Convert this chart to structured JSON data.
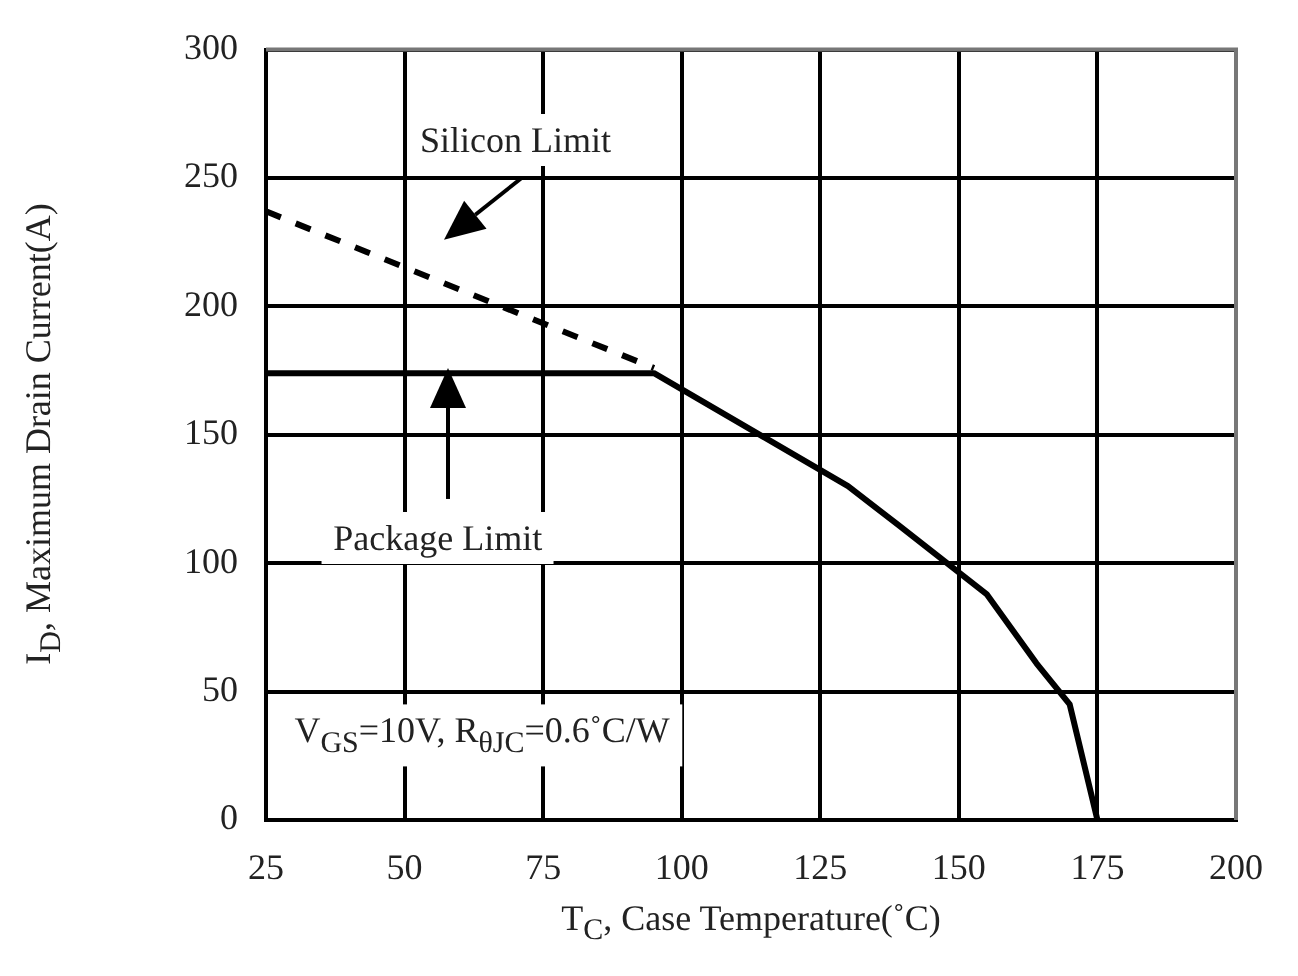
{
  "chart_data": {
    "type": "line",
    "xlabel": "T$_{C}$, Case Temperature(˚C)",
    "ylabel": "I$_{D}$, Maximum Drain Current(A)",
    "xlim": [
      25,
      200
    ],
    "xticks": [
      25,
      50,
      75,
      100,
      125,
      150,
      175,
      200
    ],
    "ylim": [
      0,
      300
    ],
    "yticks": [
      0,
      50,
      100,
      150,
      200,
      250,
      300
    ],
    "grid": true,
    "legend": false,
    "marker": "none",
    "series": [
      {
        "color": "#000000",
        "line_style": "solid",
        "x": [
          25,
          95,
          130,
          139,
          155,
          164,
          170,
          175
        ],
        "values": [
          174,
          174,
          130,
          115,
          88,
          61,
          45,
          0
        ]
      },
      {
        "color": "#000000",
        "line_style": "dashed",
        "x": [
          25,
          95
        ],
        "values": [
          237,
          176
        ]
      }
    ],
    "annotations": [
      "Silicon Limit",
      "Package Limit",
      "V$_{GS}$=10V, R$_{θJC}$=0.6˚C/W"
    ]
  }
}
